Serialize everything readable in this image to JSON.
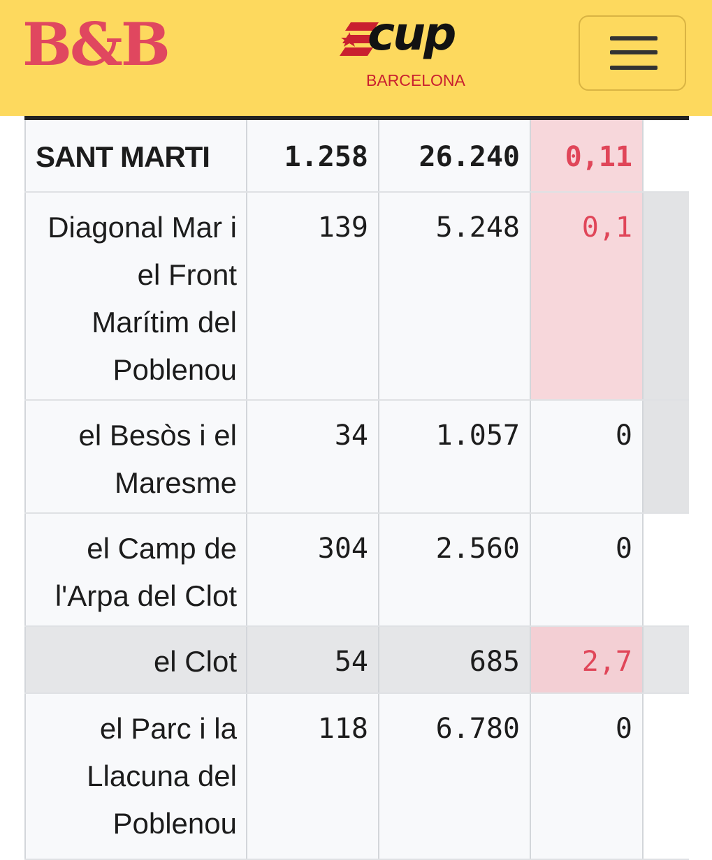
{
  "header": {
    "logo_left": "B&B",
    "logo_center_word": "cup",
    "logo_center_city": "BARCELONA",
    "menu_icon": "hamburger-menu-icon"
  },
  "colors": {
    "header_bg": "#fdd95e",
    "logo_red": "#e0475f",
    "highlight_red_text": "#e04659",
    "highlight_pink_bg": "#f7d7db"
  },
  "table": {
    "district": {
      "name": "SANT MARTI",
      "v1": "1.258",
      "v2": "26.240",
      "v3": "0,11"
    },
    "rows": [
      {
        "name": "Diagonal Mar i el Front Marítim del Poblenou",
        "v1": "139",
        "v2": "5.248",
        "v3": "0,1"
      },
      {
        "name": "el Besòs i el Maresme",
        "v1": "34",
        "v2": "1.057",
        "v3": "0"
      },
      {
        "name": "el Camp de l'Arpa del Clot",
        "v1": "304",
        "v2": "2.560",
        "v3": "0"
      },
      {
        "name": "el Clot",
        "v1": "54",
        "v2": "685",
        "v3": "2,7"
      },
      {
        "name": "el Parc i la Llacuna del Poblenou",
        "v1": "118",
        "v2": "6.780",
        "v3": "0"
      }
    ]
  }
}
